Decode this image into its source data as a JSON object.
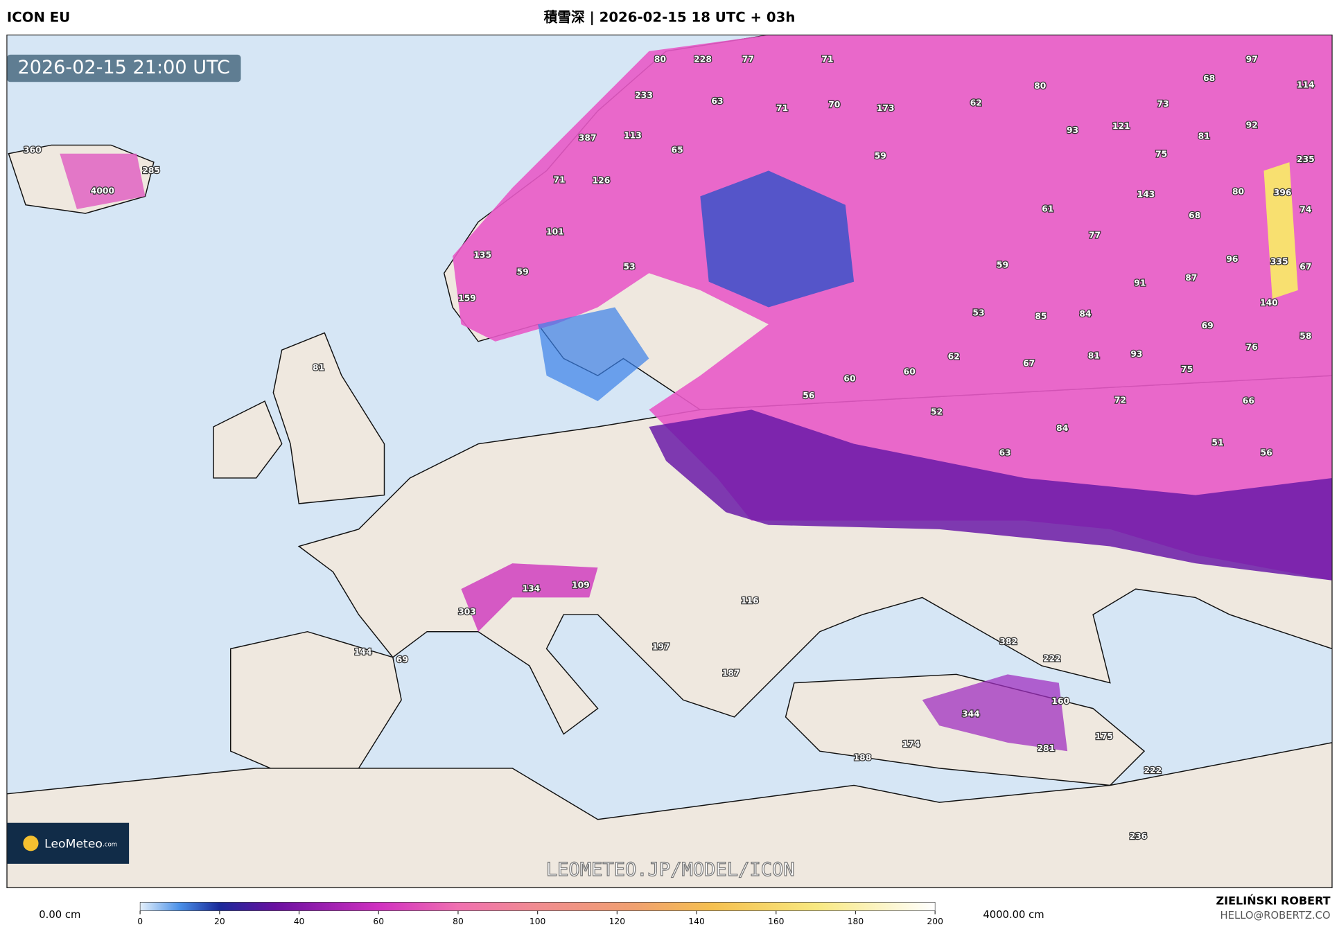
{
  "header": {
    "model": "ICON EU",
    "title": "積雪深 | 2026-02-15 18 UTC + 03h"
  },
  "map": {
    "valid_time": "2026-02-15 21:00 UTC",
    "watermark": "LEOMETEO.JP/MODEL/ICON",
    "logo": "LeoMeteo",
    "logo_suffix": ".com",
    "labels": [
      80,
      228,
      77,
      71,
      97,
      114,
      68,
      80,
      233,
      63,
      71,
      70,
      173,
      62,
      73,
      93,
      121,
      81,
      92,
      387,
      113,
      65,
      59,
      75,
      235,
      360,
      285,
      4000,
      71,
      126,
      143,
      80,
      396,
      74,
      61,
      68,
      77,
      101,
      135,
      96,
      335,
      67,
      59,
      53,
      59,
      91,
      87,
      159,
      140,
      53,
      85,
      84,
      69,
      58,
      76,
      62,
      67,
      81,
      93,
      75,
      81,
      60,
      60,
      56,
      72,
      66,
      52,
      84,
      51,
      56,
      63,
      134,
      109,
      303,
      116,
      144,
      69,
      197,
      382,
      222,
      187,
      160,
      344,
      175,
      174,
      281,
      188,
      222,
      236
    ]
  },
  "colorbar": {
    "min_label": "0.00 cm",
    "max_label": "4000.00 cm",
    "range": [
      0,
      200
    ],
    "ticks": [
      0,
      20,
      40,
      60,
      80,
      100,
      120,
      140,
      160,
      180,
      200
    ]
  },
  "footer": {
    "author": "ZIELIŃSKI ROBERT",
    "contact": "HELLO@ROBERTZ.CO"
  }
}
